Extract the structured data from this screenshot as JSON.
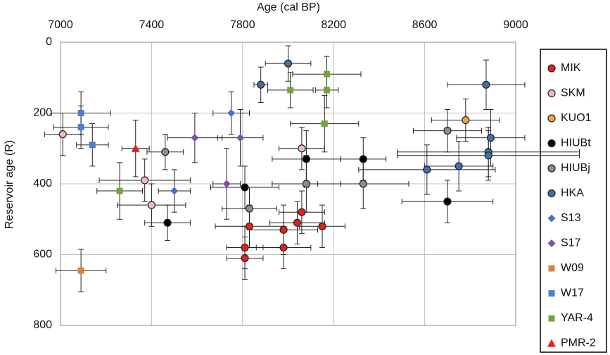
{
  "chart_data": {
    "type": "scatter",
    "x_label": "Age (cal BP)",
    "y_label": "Reservoir age (R)",
    "x_axis_position": "top",
    "y_inverted": true,
    "grid": true,
    "legend_position": "right",
    "xlim": [
      7000,
      9000
    ],
    "xticks": [
      7000,
      7400,
      7800,
      8200,
      8600,
      9000
    ],
    "ylim": [
      0,
      800
    ],
    "yticks": [
      0,
      200,
      400,
      600,
      800
    ],
    "series": [
      {
        "name": "MIK",
        "color": "#e3201b",
        "marker": "circle",
        "x": [
          8150,
          8060,
          7980,
          8040,
          7830,
          7980,
          7810,
          7810
        ],
        "values": [
          520,
          480,
          530,
          510,
          520,
          580,
          580,
          610
        ],
        "xerr": [
          100,
          100,
          150,
          120,
          150,
          120,
          80,
          80
        ],
        "yerr": [
          60,
          60,
          70,
          60,
          60,
          60,
          60,
          60
        ]
      },
      {
        "name": "SKM",
        "color": "#f2b9b9",
        "marker": "circle",
        "x": [
          7010,
          8060,
          7370,
          7400
        ],
        "values": [
          260,
          300,
          390,
          460
        ],
        "xerr": [
          80,
          100,
          200,
          150
        ],
        "yerr": [
          60,
          60,
          60,
          60
        ]
      },
      {
        "name": "KUO1",
        "color": "#f4a04c",
        "marker": "circle",
        "x": [
          8780
        ],
        "values": [
          220
        ],
        "xerr": [
          150
        ],
        "yerr": [
          60
        ]
      },
      {
        "name": "HIUBt",
        "color": "#000000",
        "marker": "circle",
        "x": [
          8080,
          8330,
          7810,
          7470,
          8700
        ],
        "values": [
          330,
          330,
          410,
          510,
          450
        ],
        "xerr": [
          150,
          100,
          150,
          100,
          200
        ],
        "yerr": [
          80,
          60,
          60,
          50,
          60
        ]
      },
      {
        "name": "HIUBj",
        "color": "#8c8c8c",
        "marker": "circle",
        "x": [
          8700,
          7460,
          7830,
          8080,
          8330
        ],
        "values": [
          250,
          310,
          470,
          400,
          400
        ],
        "xerr": [
          150,
          80,
          120,
          150,
          200
        ],
        "yerr": [
          60,
          50,
          60,
          80,
          70
        ]
      },
      {
        "name": "HKA",
        "color": "#3b73a8",
        "marker": "circle",
        "x": [
          8000,
          7880,
          8870,
          8890,
          8880,
          8880,
          8750,
          8610
        ],
        "values": [
          60,
          120,
          120,
          270,
          310,
          320,
          350,
          360
        ],
        "xerr": [
          100,
          30,
          170,
          150,
          400,
          400,
          150,
          300
        ],
        "yerr": [
          50,
          50,
          70,
          80,
          70,
          70,
          70,
          70
        ]
      },
      {
        "name": "S13",
        "color": "#4472c4",
        "marker": "diamond",
        "x": [
          7750,
          7500
        ],
        "values": [
          200,
          420
        ],
        "xerr": [
          80,
          70
        ],
        "yerr": [
          60,
          60
        ]
      },
      {
        "name": "S17",
        "color": "#7a52a5",
        "marker": "diamond",
        "x": [
          7590,
          7790,
          7730
        ],
        "values": [
          270,
          270,
          400
        ],
        "xerr": [
          120,
          100,
          60
        ],
        "yerr": [
          70,
          80,
          100
        ]
      },
      {
        "name": "W09",
        "color": "#d9823a",
        "marker": "square",
        "x": [
          7090
        ],
        "values": [
          645
        ],
        "xerr": [
          110
        ],
        "yerr": [
          60
        ]
      },
      {
        "name": "W17",
        "color": "#4a7fd1",
        "marker": "square",
        "x": [
          7090,
          7090,
          7140
        ],
        "values": [
          200,
          240,
          290
        ],
        "xerr": [
          130,
          120,
          70
        ],
        "yerr": [
          60,
          60,
          60
        ]
      },
      {
        "name": "YAR-4",
        "color": "#77a33c",
        "marker": "square",
        "x": [
          8170,
          8010,
          8170,
          8160,
          7260
        ],
        "values": [
          90,
          135,
          135,
          230,
          420
        ],
        "xerr": [
          150,
          100,
          50,
          150,
          100
        ],
        "yerr": [
          50,
          50,
          50,
          80,
          80
        ]
      },
      {
        "name": "PMR-2",
        "color": "#e0201b",
        "marker": "triangle",
        "x": [
          7330
        ],
        "values": [
          300
        ],
        "xerr": [
          60
        ],
        "yerr": [
          80
        ]
      }
    ]
  }
}
